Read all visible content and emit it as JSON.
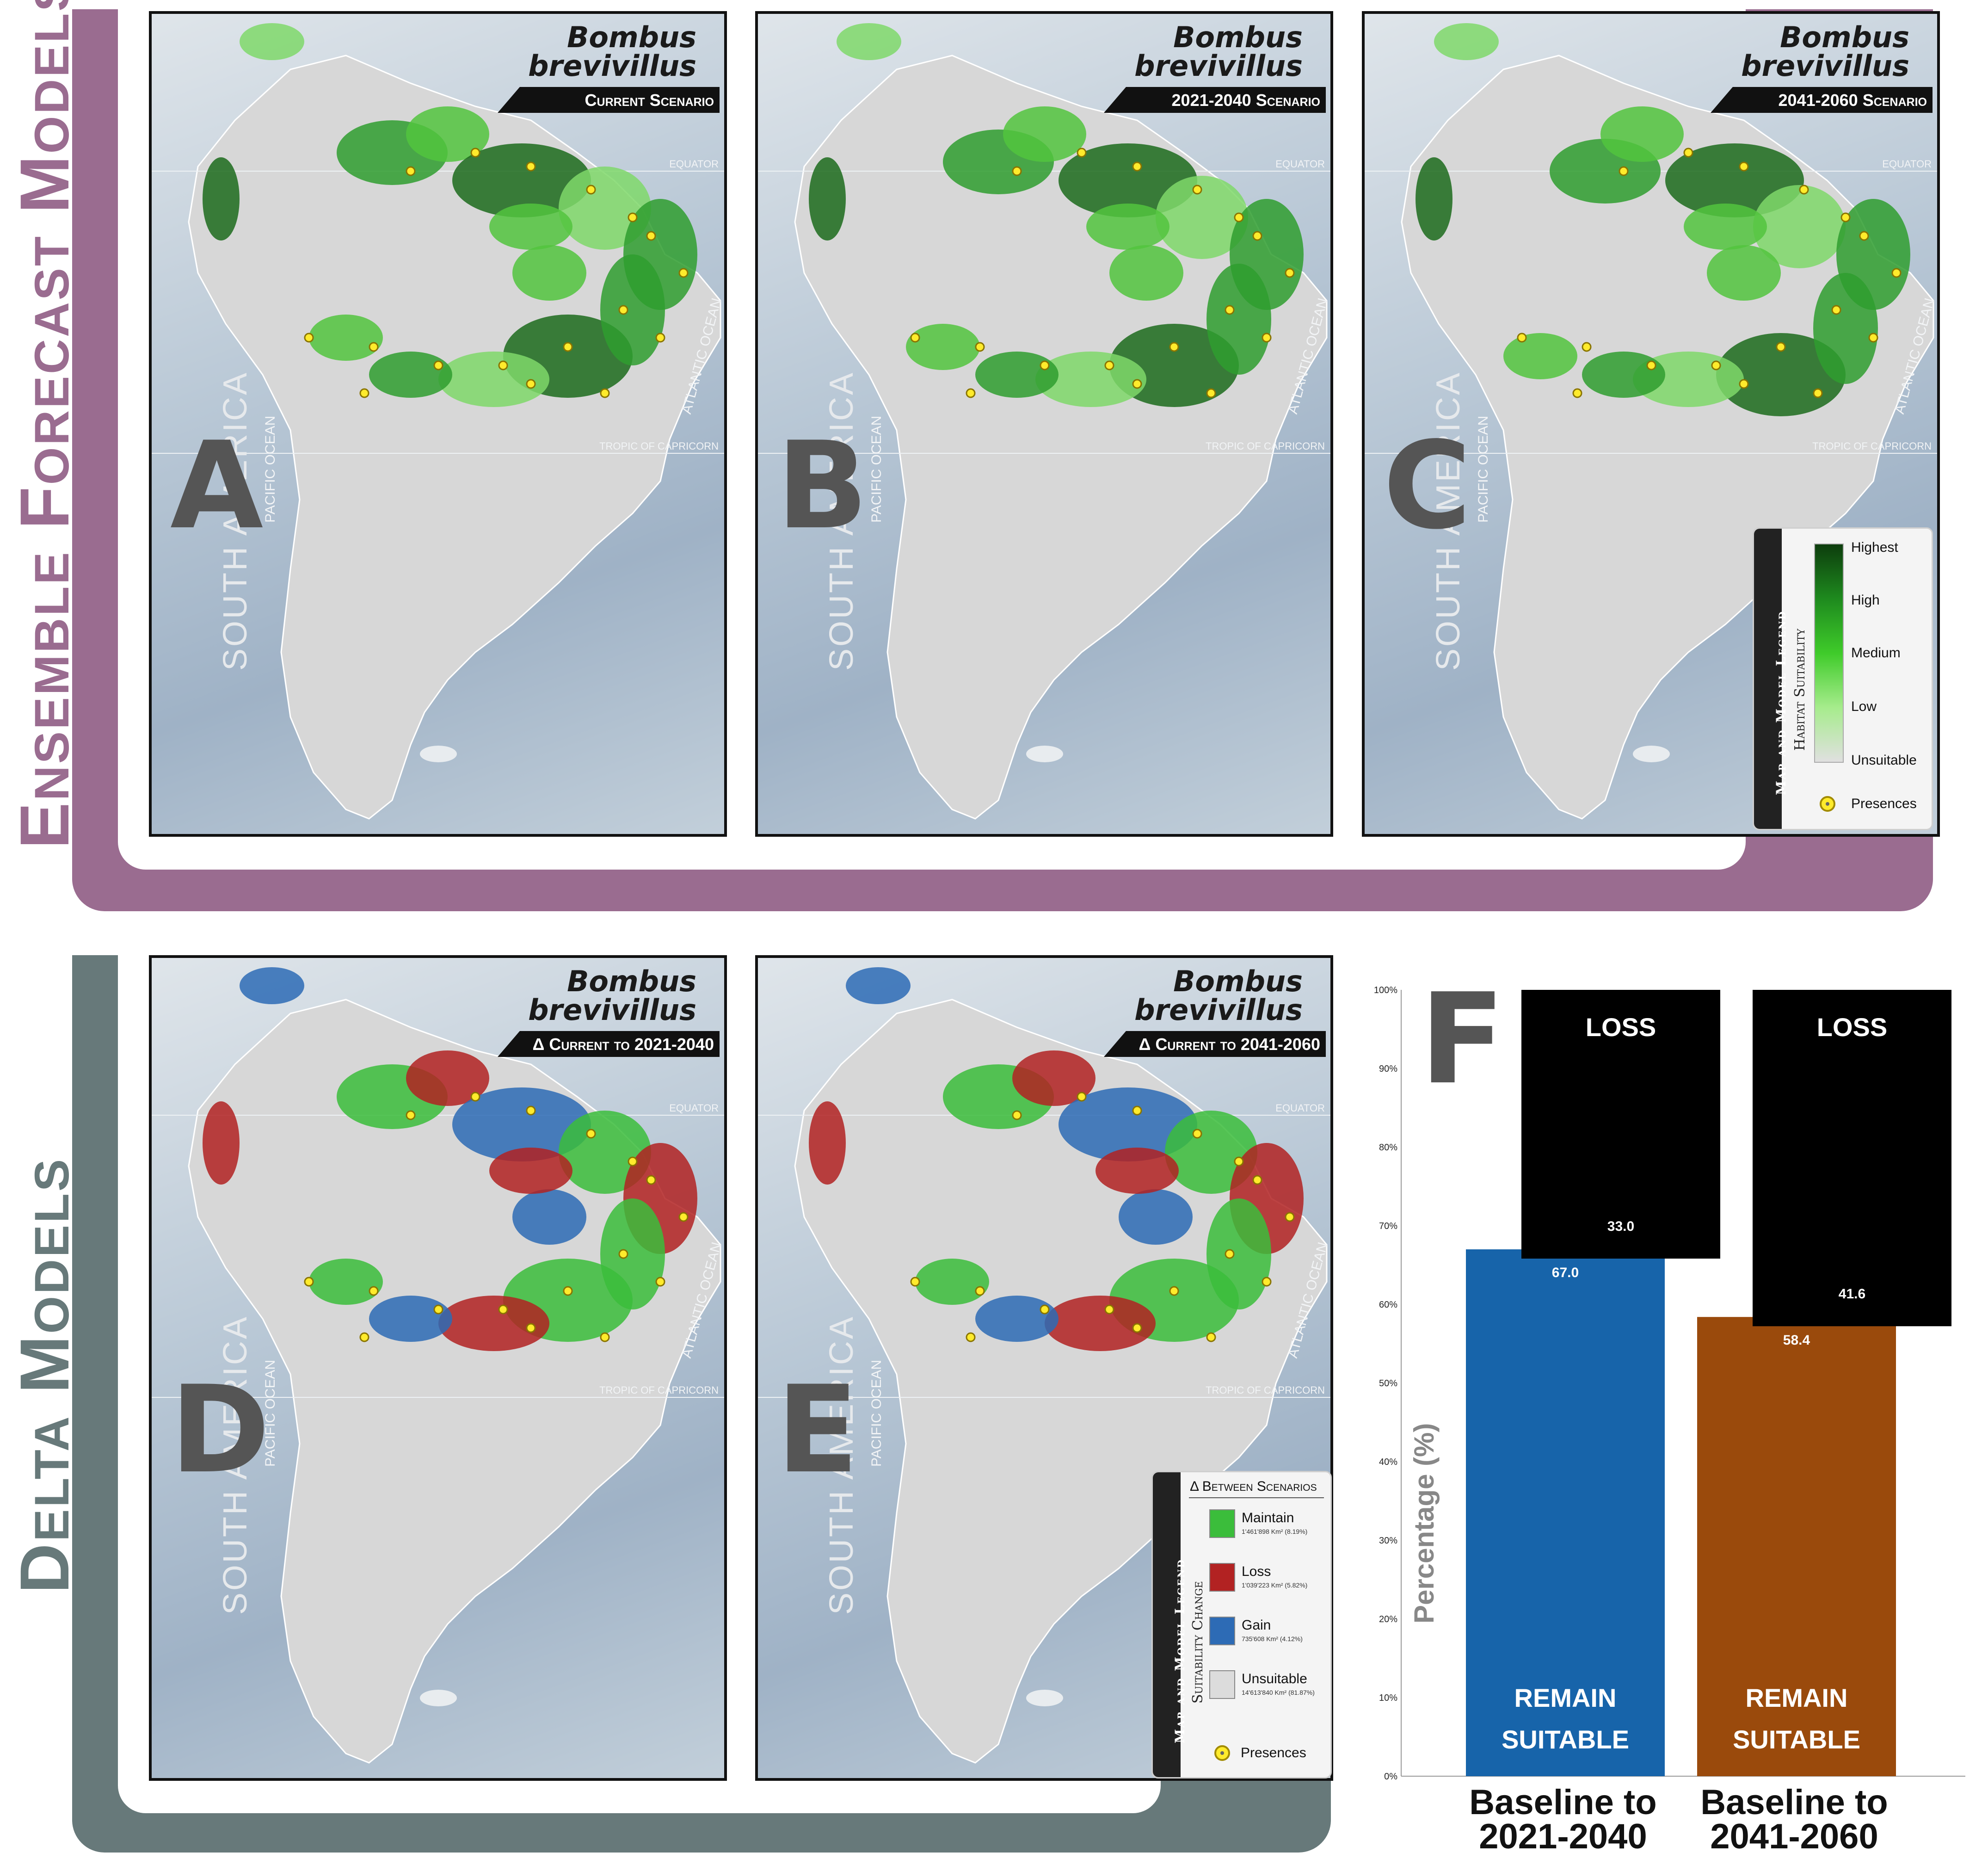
{
  "species": "Bombus brevivillus",
  "sections": {
    "top_label": "Ensemble Forecast Models",
    "bottom_label": "Delta Models"
  },
  "panels": [
    {
      "letter": "A",
      "scenario": "Current Scenario"
    },
    {
      "letter": "B",
      "scenario": "2021-2040 Scenario"
    },
    {
      "letter": "C",
      "scenario": "2041-2060 Scenario"
    },
    {
      "letter": "D",
      "scenario": "Δ Current to 2021-2040"
    },
    {
      "letter": "E",
      "scenario": "Δ Current to 2041-2060"
    }
  ],
  "map_labels": {
    "equator": "EQUATOR",
    "tropic": "TROPIC OF CAPRICORN",
    "continent": "SOUTH AMERICA",
    "pacific": "PACIFIC OCEAN",
    "atlantic": "ATLANTIC OCEAN"
  },
  "suitability_legend": {
    "side_title": "Map and Model Legend",
    "title": "Habitat Suitability",
    "levels": [
      "Highest",
      "High",
      "Medium",
      "Low",
      "Unsuitable"
    ],
    "presences": "Presences",
    "colors": [
      "#0d3d0d",
      "#1e8a1e",
      "#3fcb2a",
      "#a6ec8c",
      "#e0e0e0"
    ]
  },
  "delta_legend": {
    "side_title": "Map and Model Legend",
    "header": "Δ Between Scenarios",
    "title": "Suitability Change",
    "items": [
      {
        "label": "Maintain",
        "area": "1'461'898 Km² (8.19%)",
        "color": "#3bbd3b"
      },
      {
        "label": "Loss",
        "area": "1'039'223 Km² (5.82%)",
        "color": "#b22222"
      },
      {
        "label": "Gain",
        "area": "735'608 Km² (4.12%)",
        "color": "#2d6bb5"
      },
      {
        "label": "Unsuitable",
        "area": "14'613'840 Km² (81.87%)",
        "color": "#dcdcdc"
      }
    ],
    "presences": "Presences"
  },
  "chart_data": {
    "type": "bar",
    "stacked": true,
    "panel_letter": "F",
    "ylabel": "Percentage (%)",
    "yticks": [
      "0%",
      "10%",
      "20%",
      "30%",
      "40%",
      "50%",
      "60%",
      "70%",
      "80%",
      "90%",
      "100%"
    ],
    "ylim": [
      0,
      100
    ],
    "categories": [
      "Baseline to 2021-2040",
      "Baseline to 2041-2060"
    ],
    "series": [
      {
        "name": "REMAIN SUITABLE",
        "values": [
          67.0,
          58.4
        ],
        "colors": [
          "#1764aa",
          "#9a4a0c"
        ]
      },
      {
        "name": "LOSS",
        "values": [
          33.0,
          41.6
        ],
        "colors": [
          "#000000",
          "#000000"
        ]
      }
    ],
    "value_labels": {
      "remain": [
        "67.0",
        "58.4"
      ],
      "loss": [
        "33.0",
        "41.6"
      ]
    },
    "segment_labels": {
      "loss": "LOSS",
      "remain_line1": "REMAIN",
      "remain_line2": "SUITABLE"
    }
  }
}
